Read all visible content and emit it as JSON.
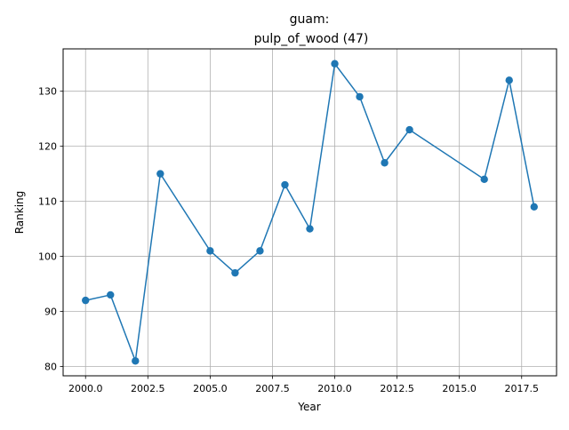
{
  "chart_data": {
    "type": "line",
    "title_line1": "guam:",
    "title_line2": "pulp_of_wood (47)",
    "xlabel": "Year",
    "ylabel": "Ranking",
    "xlim": [
      1999.1,
      2018.9
    ],
    "ylim": [
      78.3,
      137.7
    ],
    "x_ticks": [
      2000.0,
      2002.5,
      2005.0,
      2007.5,
      2010.0,
      2012.5,
      2015.0,
      2017.5
    ],
    "x_tick_labels": [
      "2000.0",
      "2002.5",
      "2005.0",
      "2007.5",
      "2010.0",
      "2012.5",
      "2015.0",
      "2017.5"
    ],
    "y_ticks": [
      80,
      90,
      100,
      110,
      120,
      130
    ],
    "y_tick_labels": [
      "80",
      "90",
      "100",
      "110",
      "120",
      "130"
    ],
    "grid": true,
    "series": [
      {
        "color": "#1f77b4",
        "x": [
          2000,
          2001,
          2002,
          2003,
          2005,
          2006,
          2007,
          2008,
          2009,
          2010,
          2011,
          2012,
          2013,
          2016,
          2017,
          2018
        ],
        "y": [
          92,
          93,
          81,
          115,
          101,
          97,
          101,
          113,
          105,
          135,
          129,
          117,
          123,
          114,
          132,
          109
        ]
      }
    ]
  }
}
